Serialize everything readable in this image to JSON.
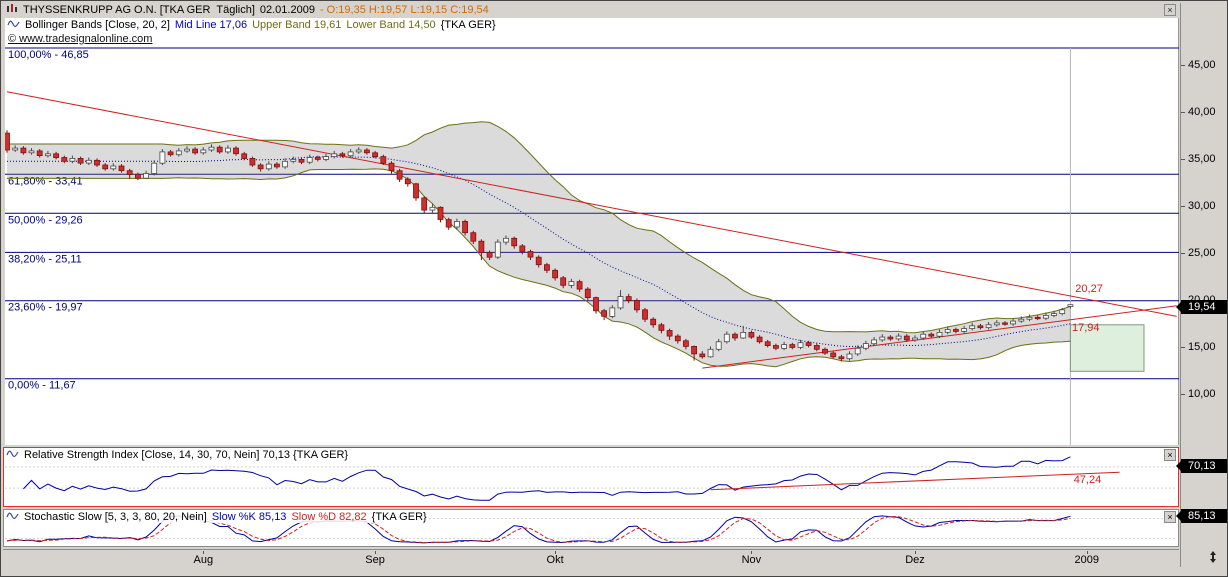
{
  "window": {
    "close_glyph": "×"
  },
  "main_chart": {
    "title": {
      "instrument": "THYSSENKRUPP AG O.N. [TKA GER  Täglich]",
      "date": "02.01.2009",
      "ohlc": "- O:19,35 H:19,57 L:19,15 C:19,54"
    },
    "legend": {
      "name": "Bollinger Bands [Close, 20, 2]",
      "mid": "Mid Line 17,06",
      "upper": "Upper Band 19,61",
      "lower": "Lower Band 14,50",
      "symbol": "{TKA GER}"
    },
    "copyright": "© www.tradesignalonline.com",
    "price_badge": "19,54"
  },
  "rsi_panel": {
    "legend": "Relative Strength Index [Close, 14, 30, 70, Nein] 70,13 {TKA GER}",
    "badge": "70,13"
  },
  "stoch_panel": {
    "legend_name": "Stochastic Slow [5, 3, 3, 80, 20, Nein]",
    "legend_k": "Slow %K 85,13",
    "legend_d": "Slow %D 82,82",
    "symbol": "{TKA GER}",
    "badge": "85,13"
  },
  "chart_data": {
    "type": "candlestick",
    "symbol": "TKA GER",
    "timeframe": "Täglich",
    "last": {
      "date": "02.01.2009",
      "open": 19.35,
      "high": 19.57,
      "low": 19.15,
      "close": 19.54
    },
    "y_axis": {
      "ticks": [
        {
          "label": "45,00",
          "value": 45
        },
        {
          "label": "40,00",
          "value": 40
        },
        {
          "label": "35,00",
          "value": 35
        },
        {
          "label": "30,00",
          "value": 30
        },
        {
          "label": "25,00",
          "value": 25
        },
        {
          "label": "20,00",
          "value": 20
        },
        {
          "label": "15,00",
          "value": 15
        },
        {
          "label": "10,00",
          "value": 10
        }
      ]
    },
    "x_axis": {
      "ticks": [
        {
          "label": "Aug",
          "day": 24
        },
        {
          "label": "Sep",
          "day": 45
        },
        {
          "label": "Okt",
          "day": 67
        },
        {
          "label": "Nov",
          "day": 91
        },
        {
          "label": "Dez",
          "day": 111
        },
        {
          "label": "2009",
          "day": 132
        }
      ]
    },
    "fibonacci": [
      {
        "label": "100,00% - 46,85",
        "value": 46.85
      },
      {
        "label": "61,80% - 33,41",
        "value": 33.41
      },
      {
        "label": "50,00% - 29,26",
        "value": 29.26
      },
      {
        "label": "38,20% - 25,11",
        "value": 25.11
      },
      {
        "label": "23,60% - 19,97",
        "value": 19.97
      },
      {
        "label": "0,00% - 11,67",
        "value": 11.67
      }
    ],
    "bollinger": {
      "period": 20,
      "stddev": 2,
      "mid": 17.06,
      "upper": 19.61,
      "lower": 14.5
    },
    "trendlines": [
      {
        "name": "descending-resistance",
        "from": {
          "day": 0,
          "price": 42.2
        },
        "to": {
          "day": 143,
          "price": 18.3
        }
      },
      {
        "name": "ascending-support",
        "from": {
          "day": 85,
          "price": 12.8
        },
        "to": {
          "day": 143,
          "price": 19.42
        }
      }
    ],
    "annotations": [
      {
        "text": "20,27",
        "day": 130.6,
        "price": 20.9
      },
      {
        "text": "17,94",
        "day": 130.2,
        "price": 16.75
      }
    ],
    "projection_box": {
      "from_day": 130,
      "to_day": 139,
      "top": 17.4,
      "bottom": 12.45
    },
    "rsi": {
      "period": 14,
      "value": 70.13,
      "levels": [
        30,
        70
      ],
      "trendline": {
        "from": {
          "day": 86,
          "value": 27
        },
        "to": {
          "day": 136,
          "value": 60
        }
      },
      "annotation": {
        "text": "47,24",
        "day": 130.4,
        "value": 40
      }
    },
    "stochastic": {
      "k_period": 5,
      "k_smooth": 3,
      "d_period": 3,
      "levels": [
        20,
        80
      ],
      "k": 85.13,
      "d": 82.82
    },
    "colors": {
      "candle_up_fill": "#fbfbfb",
      "candle_up_stroke": "#4a4a4a",
      "candle_down_fill": "#cd2f2f",
      "candle_down_stroke": "#7d1212",
      "band_fill": "rgba(125,125,125,0.28)",
      "band_line": "#6e6e14",
      "mid_line": "#000099",
      "fib": "#00007d",
      "trend": "#cc2222",
      "rsi_line": "#0000a0",
      "stoch_k": "#0000a0",
      "stoch_d": "#cc2222",
      "badge_bg": "#000000",
      "badge_text": "#ffffff"
    },
    "candles": [
      [
        37.8,
        38.1,
        35.7,
        36.0
      ],
      [
        36.0,
        36.5,
        35.8,
        36.2
      ],
      [
        36.2,
        36.4,
        35.5,
        35.7
      ],
      [
        35.7,
        36.2,
        35.5,
        35.9
      ],
      [
        35.9,
        36.1,
        35.2,
        35.4
      ],
      [
        35.4,
        35.9,
        35.2,
        35.6
      ],
      [
        35.6,
        35.8,
        35.0,
        35.2
      ],
      [
        35.2,
        35.4,
        34.6,
        34.8
      ],
      [
        34.8,
        35.4,
        34.6,
        35.1
      ],
      [
        35.1,
        35.3,
        34.4,
        34.6
      ],
      [
        34.6,
        35.2,
        34.4,
        34.9
      ],
      [
        34.9,
        35.1,
        34.2,
        34.4
      ],
      [
        34.4,
        34.6,
        33.8,
        34.0
      ],
      [
        34.0,
        34.6,
        33.8,
        34.3
      ],
      [
        34.3,
        34.5,
        33.6,
        33.8
      ],
      [
        33.8,
        34.0,
        32.9,
        33.4
      ],
      [
        33.4,
        33.6,
        32.8,
        33.0
      ],
      [
        33.0,
        33.8,
        32.9,
        33.5
      ],
      [
        33.5,
        34.9,
        33.3,
        34.6
      ],
      [
        34.6,
        36.1,
        34.4,
        35.8
      ],
      [
        35.8,
        36.0,
        35.3,
        35.5
      ],
      [
        35.5,
        36.2,
        35.3,
        35.9
      ],
      [
        35.9,
        36.4,
        35.7,
        36.1
      ],
      [
        36.1,
        36.3,
        35.5,
        35.7
      ],
      [
        35.7,
        36.3,
        35.5,
        36.0
      ],
      [
        36.0,
        36.6,
        35.8,
        36.3
      ],
      [
        36.3,
        36.5,
        35.6,
        35.8
      ],
      [
        35.8,
        36.5,
        35.6,
        36.2
      ],
      [
        36.2,
        36.4,
        35.4,
        35.6
      ],
      [
        35.6,
        35.8,
        34.9,
        35.1
      ],
      [
        35.1,
        35.3,
        34.2,
        34.4
      ],
      [
        34.4,
        34.6,
        33.7,
        34.0
      ],
      [
        34.0,
        34.8,
        33.8,
        34.5
      ],
      [
        34.5,
        34.7,
        34.0,
        34.2
      ],
      [
        34.2,
        35.1,
        34.0,
        34.8
      ],
      [
        34.8,
        35.3,
        34.6,
        35.0
      ],
      [
        35.0,
        35.2,
        34.5,
        34.7
      ],
      [
        34.7,
        35.5,
        34.5,
        35.2
      ],
      [
        35.2,
        35.4,
        34.8,
        35.0
      ],
      [
        35.0,
        35.6,
        34.8,
        35.3
      ],
      [
        35.3,
        35.9,
        35.1,
        35.6
      ],
      [
        35.6,
        35.8,
        35.2,
        35.4
      ],
      [
        35.4,
        36.1,
        35.2,
        35.8
      ],
      [
        35.8,
        36.3,
        35.6,
        36.0
      ],
      [
        36.0,
        36.2,
        35.5,
        35.7
      ],
      [
        35.7,
        35.9,
        35.1,
        35.3
      ],
      [
        35.3,
        35.5,
        34.4,
        34.6
      ],
      [
        34.6,
        34.8,
        33.5,
        33.8
      ],
      [
        33.8,
        34.0,
        32.6,
        32.9
      ],
      [
        32.9,
        33.1,
        32.1,
        32.4
      ],
      [
        32.4,
        32.5,
        30.6,
        30.9
      ],
      [
        30.9,
        31.1,
        29.3,
        29.6
      ],
      [
        29.6,
        30.3,
        29.3,
        29.9
      ],
      [
        29.9,
        30.0,
        28.3,
        28.6
      ],
      [
        28.6,
        28.8,
        27.5,
        27.8
      ],
      [
        27.8,
        28.7,
        27.5,
        28.4
      ],
      [
        28.4,
        28.6,
        26.9,
        27.2
      ],
      [
        27.2,
        27.4,
        26.0,
        26.3
      ],
      [
        26.3,
        26.5,
        24.3,
        25.1
      ],
      [
        25.1,
        25.3,
        24.3,
        24.6
      ],
      [
        24.6,
        26.5,
        24.4,
        26.2
      ],
      [
        26.2,
        26.9,
        25.9,
        26.6
      ],
      [
        26.6,
        26.8,
        25.5,
        25.8
      ],
      [
        25.8,
        26.0,
        24.9,
        25.2
      ],
      [
        25.2,
        25.4,
        24.3,
        24.6
      ],
      [
        24.6,
        24.8,
        23.5,
        23.8
      ],
      [
        23.8,
        24.0,
        22.9,
        23.2
      ],
      [
        23.2,
        23.4,
        22.1,
        22.4
      ],
      [
        22.4,
        22.6,
        21.3,
        21.6
      ],
      [
        21.6,
        22.3,
        21.3,
        22.0
      ],
      [
        22.0,
        22.2,
        20.9,
        21.2
      ],
      [
        21.2,
        21.4,
        20.0,
        20.3
      ],
      [
        20.3,
        20.4,
        18.6,
        18.9
      ],
      [
        18.9,
        19.1,
        17.9,
        18.3
      ],
      [
        18.3,
        19.5,
        18.1,
        19.2
      ],
      [
        19.2,
        21.1,
        19.0,
        20.4
      ],
      [
        20.4,
        20.7,
        19.7,
        20.0
      ],
      [
        20.0,
        20.2,
        18.7,
        19.0
      ],
      [
        19.0,
        19.2,
        17.7,
        18.0
      ],
      [
        18.0,
        18.2,
        17.1,
        17.4
      ],
      [
        17.4,
        17.6,
        16.5,
        16.8
      ],
      [
        16.8,
        17.0,
        15.8,
        16.2
      ],
      [
        16.2,
        16.4,
        15.4,
        15.7
      ],
      [
        15.7,
        15.9,
        14.8,
        15.1
      ],
      [
        15.1,
        15.2,
        13.6,
        14.3
      ],
      [
        14.3,
        14.6,
        13.8,
        14.0
      ],
      [
        14.0,
        15.1,
        13.9,
        14.8
      ],
      [
        14.8,
        15.9,
        14.6,
        15.6
      ],
      [
        15.6,
        16.7,
        15.4,
        16.4
      ],
      [
        16.4,
        16.6,
        15.7,
        16.0
      ],
      [
        16.0,
        17.3,
        15.9,
        16.6
      ],
      [
        16.6,
        16.8,
        15.9,
        16.1
      ],
      [
        16.1,
        16.3,
        15.4,
        15.6
      ],
      [
        15.6,
        15.8,
        15.0,
        15.2
      ],
      [
        15.2,
        15.4,
        14.7,
        14.9
      ],
      [
        14.9,
        15.6,
        14.7,
        15.3
      ],
      [
        15.3,
        15.5,
        14.8,
        15.0
      ],
      [
        15.0,
        15.8,
        14.8,
        15.5
      ],
      [
        15.5,
        15.7,
        15.0,
        15.2
      ],
      [
        15.2,
        15.4,
        14.6,
        14.8
      ],
      [
        14.8,
        15.0,
        14.2,
        14.4
      ],
      [
        14.4,
        14.6,
        13.8,
        14.0
      ],
      [
        14.0,
        14.2,
        13.5,
        13.8
      ],
      [
        13.8,
        14.6,
        13.6,
        14.3
      ],
      [
        14.3,
        15.2,
        14.1,
        14.9
      ],
      [
        14.9,
        15.7,
        14.7,
        15.4
      ],
      [
        15.4,
        16.1,
        15.2,
        15.8
      ],
      [
        15.8,
        16.4,
        15.6,
        16.1
      ],
      [
        16.1,
        16.3,
        15.7,
        15.9
      ],
      [
        15.9,
        16.5,
        15.7,
        16.2
      ],
      [
        16.2,
        16.4,
        15.6,
        15.8
      ],
      [
        15.8,
        16.3,
        15.6,
        16.0
      ],
      [
        16.0,
        16.7,
        15.8,
        16.4
      ],
      [
        16.4,
        16.6,
        16.0,
        16.2
      ],
      [
        16.2,
        16.9,
        16.0,
        16.6
      ],
      [
        16.6,
        17.2,
        16.4,
        16.9
      ],
      [
        16.9,
        17.1,
        16.5,
        16.7
      ],
      [
        16.7,
        17.3,
        16.5,
        17.0
      ],
      [
        17.0,
        17.6,
        16.8,
        17.3
      ],
      [
        17.3,
        17.5,
        16.9,
        17.1
      ],
      [
        17.1,
        17.7,
        16.9,
        17.4
      ],
      [
        17.4,
        17.9,
        17.2,
        17.6
      ],
      [
        17.6,
        17.8,
        17.3,
        17.5
      ],
      [
        17.5,
        18.1,
        17.3,
        17.8
      ],
      [
        17.8,
        18.3,
        17.6,
        18.0
      ],
      [
        18.0,
        18.5,
        17.8,
        18.2
      ],
      [
        18.2,
        18.4,
        17.9,
        18.1
      ],
      [
        18.1,
        18.7,
        17.9,
        18.4
      ],
      [
        18.4,
        18.9,
        18.2,
        18.6
      ],
      [
        18.6,
        19.2,
        18.4,
        19.0
      ],
      [
        19.35,
        19.57,
        19.15,
        19.54
      ]
    ]
  }
}
